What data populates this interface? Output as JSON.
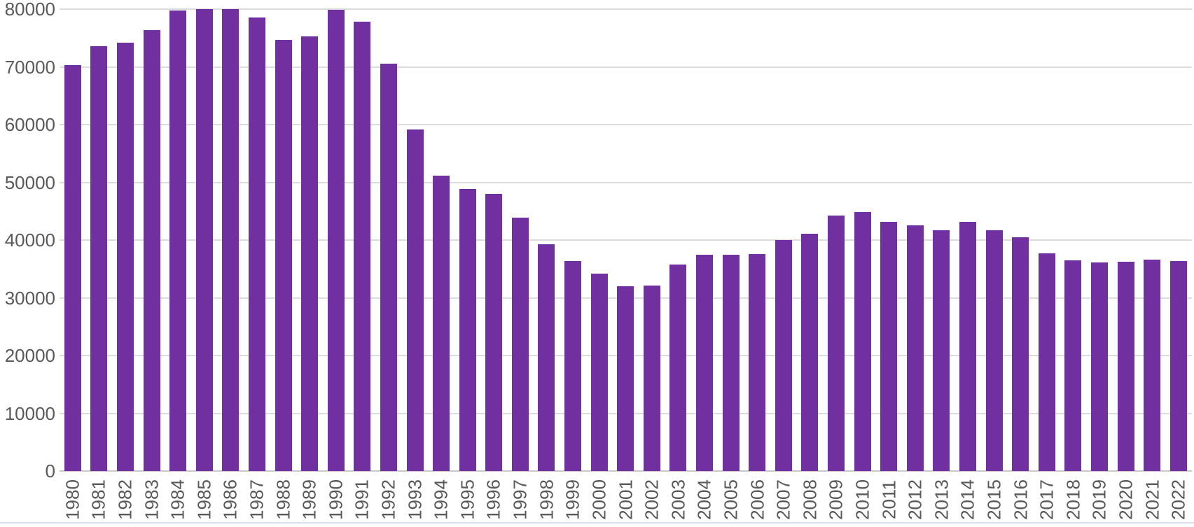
{
  "chart_data": {
    "type": "bar",
    "title": "",
    "xlabel": "",
    "ylabel": "",
    "categories": [
      "1980",
      "1981",
      "1982",
      "1983",
      "1984",
      "1985",
      "1986",
      "1987",
      "1988",
      "1989",
      "1990",
      "1991",
      "1992",
      "1993",
      "1994",
      "1995",
      "1996",
      "1997",
      "1998",
      "1999",
      "2000",
      "2001",
      "2002",
      "2003",
      "2004",
      "2005",
      "2006",
      "2007",
      "2008",
      "2009",
      "2010",
      "2011",
      "2012",
      "2013",
      "2014",
      "2015",
      "2016",
      "2017",
      "2018",
      "2019",
      "2020",
      "2021",
      "2022"
    ],
    "values": [
      70300,
      73600,
      74200,
      76400,
      79800,
      80000,
      80000,
      78500,
      74700,
      75300,
      79900,
      77800,
      70500,
      59100,
      51100,
      48900,
      48000,
      43900,
      39300,
      36400,
      34200,
      32000,
      32100,
      35800,
      37500,
      37500,
      37600,
      40000,
      41100,
      44300,
      44800,
      43200,
      42500,
      41700,
      43200,
      41700,
      40500,
      37700,
      36500,
      36100,
      36300,
      36600,
      36400
    ],
    "ylim": [
      0,
      80000
    ],
    "yticks": [
      0,
      10000,
      20000,
      30000,
      40000,
      50000,
      60000,
      70000,
      80000
    ],
    "yticklabels": [
      "0",
      "10000",
      "20000",
      "30000",
      "40000",
      "50000",
      "60000",
      "70000",
      "80000"
    ],
    "grid": true,
    "legend": false,
    "bar_color": "#7030A0",
    "gridline_color": "#DCDCDC",
    "axis_line_color": "#C9C9C9",
    "tick_label_color": "#595959",
    "background_color": "#FFFFFF",
    "bottom_edge_color": "#D8DFEC"
  }
}
